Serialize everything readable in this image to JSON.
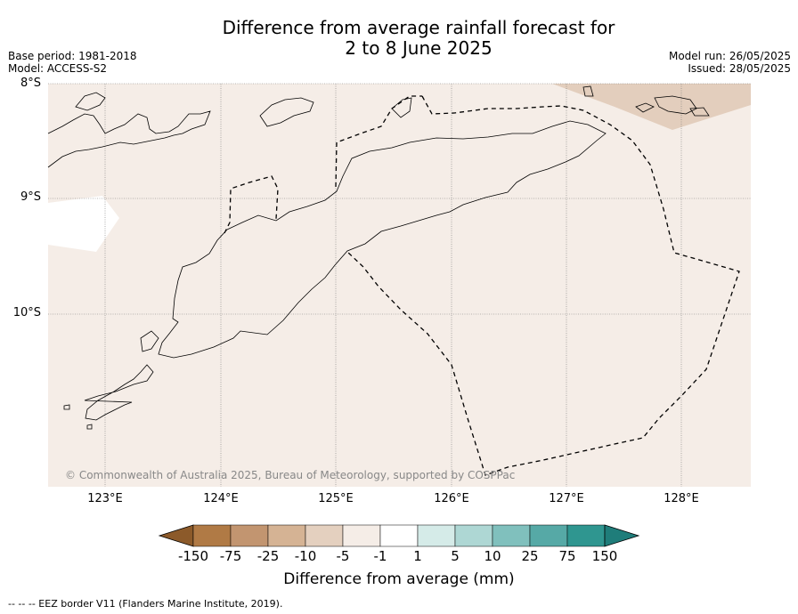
{
  "title": {
    "line1": "Difference from average rainfall forecast for",
    "line2": "2 to 8 June 2025"
  },
  "meta": {
    "base_period": "Base period: 1981-2018",
    "model": "Model: ACCESS-S2",
    "model_run": "Model run: 26/05/2025",
    "issued": "Issued: 28/05/2025"
  },
  "map": {
    "latitudes": [
      "8°S",
      "9°S",
      "10°S"
    ],
    "longitudes": [
      "123°E",
      "124°E",
      "125°E",
      "126°E",
      "127°E",
      "128°E"
    ],
    "copyright": "© Commonwealth of Australia 2025, Bureau of Meteorology, supported by COSPPac",
    "colors": {
      "background_category": "#f5ede7",
      "dry_category": "#e3cebd",
      "land_outline": "#000000",
      "eez_border": "#000000",
      "gridline": "#777777"
    }
  },
  "colorbar": {
    "title": "Difference from average (mm)",
    "labels": [
      "-150",
      "-75",
      "-25",
      "-10",
      "-5",
      "-1",
      "1",
      "5",
      "10",
      "25",
      "75",
      "150"
    ],
    "colors": [
      "#8c5a2a",
      "#b07a45",
      "#c29570",
      "#d5b394",
      "#e4d0bf",
      "#f5ede7",
      "#ffffff",
      "#d5ebe8",
      "#aed7d4",
      "#80c0bd",
      "#56a9a6",
      "#2f9690",
      "#1f7d7a"
    ]
  },
  "footnote": "--  --  -- EEZ border V11 (Flanders Marine Institute, 2019)."
}
